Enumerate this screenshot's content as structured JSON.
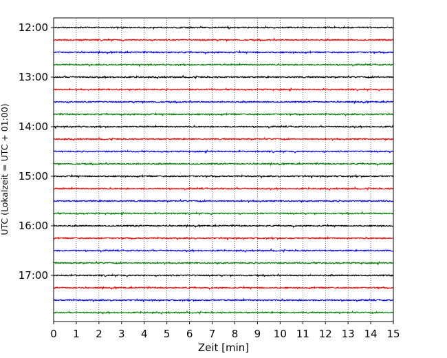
{
  "chart_data": {
    "type": "line",
    "title": "",
    "xlabel": "Zeit  [min]",
    "ylabel": "UTC (Lokalzeit = UTC + 01:00)",
    "xlim": [
      0,
      15
    ],
    "x_ticks": [
      0,
      1,
      2,
      3,
      4,
      5,
      6,
      7,
      8,
      9,
      10,
      11,
      12,
      13,
      14,
      15
    ],
    "y_tick_labels": [
      "12:00",
      "13:00",
      "14:00",
      "15:00",
      "16:00",
      "17:00"
    ],
    "row_start_time": "12:00",
    "row_interval_minutes": 15,
    "row_count": 24,
    "color_cycle": [
      "#000000",
      "#ff0000",
      "#0000ff",
      "#008000"
    ],
    "grid": {
      "vertical": true,
      "style": "dotted"
    },
    "series": [
      {
        "values": "seismic trace rows 12:00-17:45, every 15 min, noise amplitude small"
      }
    ]
  }
}
